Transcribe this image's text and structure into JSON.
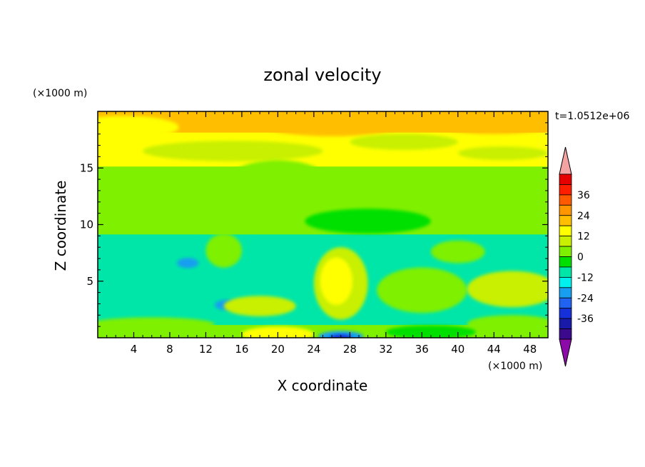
{
  "chart_data": {
    "type": "heatmap",
    "title": "zonal velocity",
    "xlabel": "X coordinate",
    "ylabel": "Z coordinate",
    "x_unit_label": "(×1000 m)",
    "y_unit_label": "(×1000 m)",
    "time_label": "t=1.0512e+06",
    "xlim": [
      0,
      50
    ],
    "ylim": [
      0,
      20
    ],
    "x_ticks": [
      4,
      8,
      12,
      16,
      20,
      24,
      28,
      32,
      36,
      40,
      44,
      48
    ],
    "y_ticks": [
      5,
      10,
      15
    ],
    "colorbar": {
      "levels": [
        -42,
        -36,
        -30,
        -24,
        -18,
        -12,
        -6,
        0,
        6,
        12,
        18,
        24,
        30,
        36,
        42
      ],
      "labels": [
        36,
        24,
        12,
        0,
        -12,
        -24,
        -36
      ],
      "colors": [
        "#3b0a8c",
        "#1a1aa8",
        "#1530d8",
        "#1f63f0",
        "#189ef0",
        "#00f0f0",
        "#00e6a8",
        "#00e000",
        "#7ff000",
        "#c8f000",
        "#ffff00",
        "#ffbf00",
        "#ff9600",
        "#ff5a00",
        "#ff1e00",
        "#e60000"
      ],
      "under_color": "#8c0aa8",
      "over_color": "#f4a3a3"
    },
    "field_summary": [
      {
        "z_range": [
          18,
          20
        ],
        "value": 20,
        "note": "orange maxima near x=26 and x=44"
      },
      {
        "z_range": [
          15,
          18
        ],
        "value": 12
      },
      {
        "z_range": [
          11,
          15
        ],
        "value": 5
      },
      {
        "z_range": [
          9,
          11
        ],
        "value": 0
      },
      {
        "z_range": [
          1,
          9
        ],
        "value": -8
      },
      {
        "z_range": [
          0,
          1
        ],
        "value": 3,
        "note": "blue minimum near x=27, z=0"
      }
    ]
  }
}
